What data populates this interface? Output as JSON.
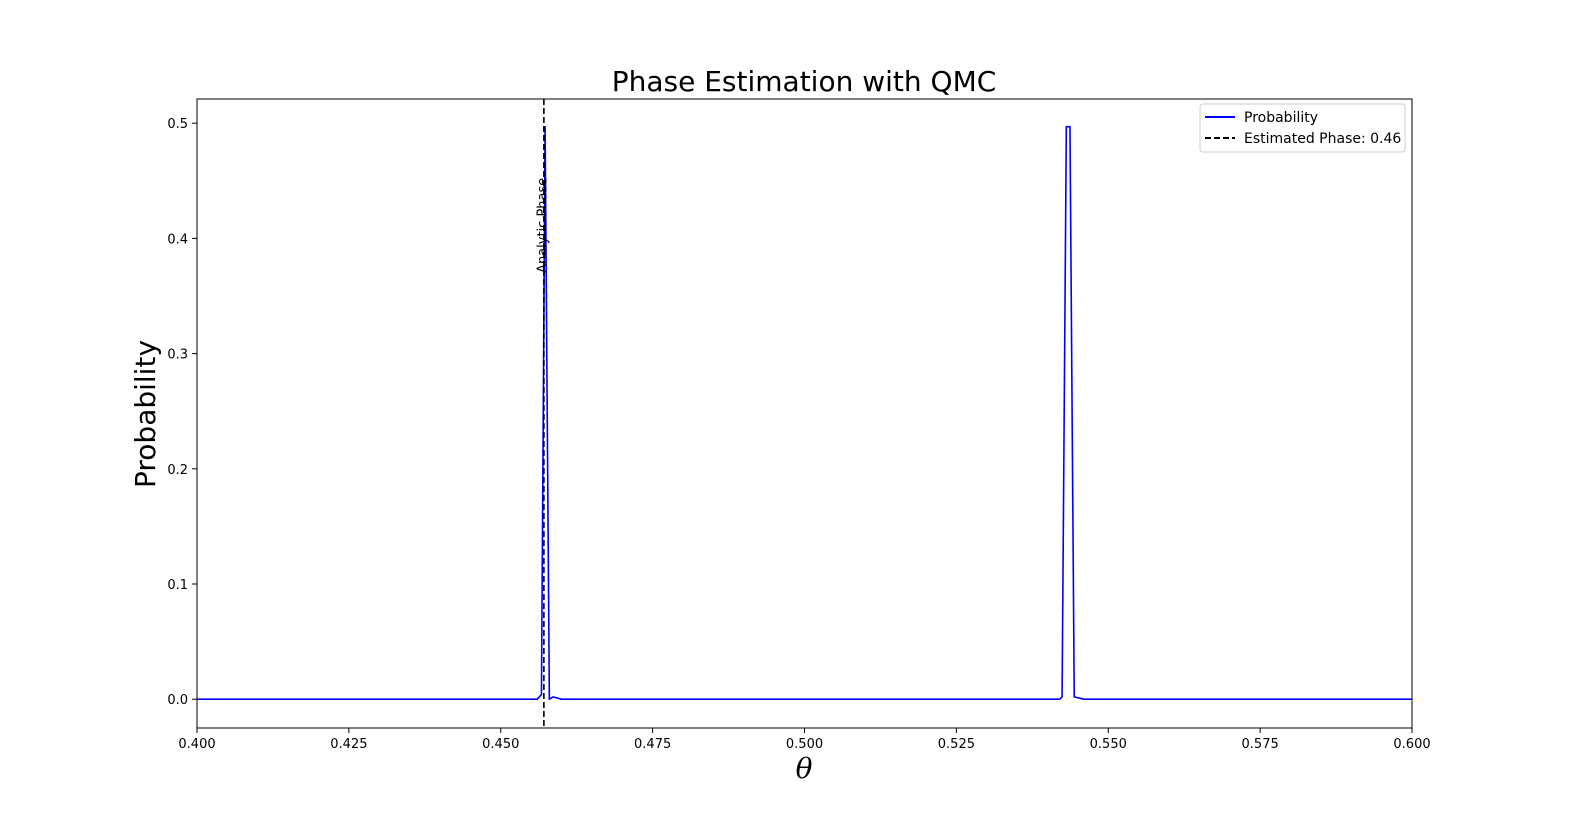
{
  "chart_data": {
    "type": "line",
    "title": "Phase Estimation with QMC",
    "xlabel": "θ",
    "ylabel": "Probability",
    "xlim": [
      0.4,
      0.6
    ],
    "ylim": [
      -0.025,
      0.521
    ],
    "x_ticks": [
      0.4,
      0.425,
      0.45,
      0.475,
      0.5,
      0.525,
      0.55,
      0.575,
      0.6
    ],
    "x_tick_labels": [
      "0.400",
      "0.425",
      "0.450",
      "0.475",
      "0.500",
      "0.525",
      "0.550",
      "0.575",
      "0.600"
    ],
    "y_ticks": [
      0.0,
      0.1,
      0.2,
      0.3,
      0.4,
      0.5
    ],
    "y_tick_labels": [
      "0.0",
      "0.1",
      "0.2",
      "0.3",
      "0.4",
      "0.5"
    ],
    "grid": false,
    "legend_position": "top-right",
    "series": [
      {
        "name": "Probability",
        "color": "#0000ff",
        "style": "solid",
        "x": [
          0.4,
          0.456,
          0.4567,
          0.4573,
          0.458,
          0.4586,
          0.46,
          0.5,
          0.542,
          0.5424,
          0.5431,
          0.5437,
          0.5444,
          0.546,
          0.6
        ],
        "y": [
          0.0,
          0.0,
          0.004,
          0.497,
          0.0,
          0.002,
          0.0,
          0.0,
          0.0,
          0.002,
          0.497,
          0.497,
          0.002,
          0.0,
          0.0
        ]
      },
      {
        "name": "Estimated Phase: 0.46",
        "color": "#000000",
        "style": "dashed",
        "x_value": 0.4571
      }
    ],
    "annotations": [
      {
        "text": "Analytic Phase",
        "x": 0.4575,
        "y": 0.37,
        "rotation": -90
      }
    ]
  }
}
